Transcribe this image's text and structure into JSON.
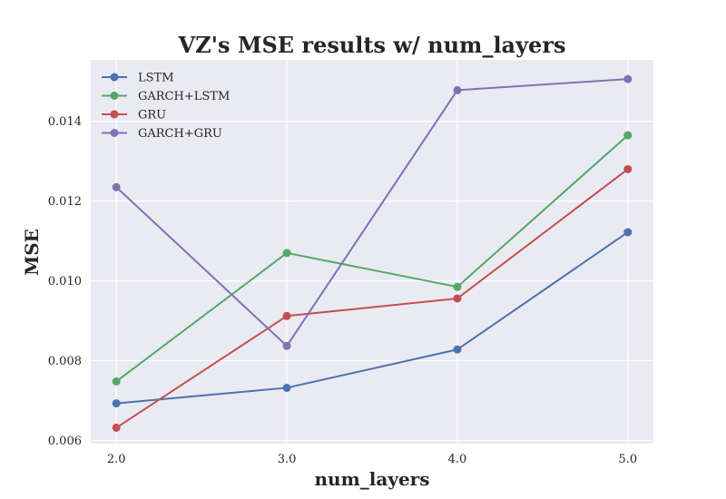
{
  "chart_data": {
    "type": "line",
    "title": "VZ's MSE results w/ num_layers",
    "xlabel": "num_layers",
    "ylabel": "MSE",
    "x": [
      2.0,
      3.0,
      4.0,
      5.0
    ],
    "x_tick_labels": [
      "2.0",
      "3.0",
      "4.0",
      "5.0"
    ],
    "xlim": [
      1.85,
      5.15
    ],
    "ylim": [
      0.00592,
      0.01554
    ],
    "y_ticks": [
      0.006,
      0.008,
      0.01,
      0.012,
      0.014
    ],
    "y_tick_labels": [
      "0.006",
      "0.008",
      "0.010",
      "0.012",
      "0.014"
    ],
    "grid": true,
    "legend_position": "upper-left",
    "background_color": "#EAEAF2",
    "series": [
      {
        "name": "LSTM",
        "color": "#4C72B0",
        "values": [
          0.00693,
          0.00732,
          0.00828,
          0.01122
        ]
      },
      {
        "name": "GARCH+LSTM",
        "color": "#55A868",
        "values": [
          0.00748,
          0.0107,
          0.00985,
          0.01365
        ]
      },
      {
        "name": "GRU",
        "color": "#C44E52",
        "values": [
          0.00632,
          0.00912,
          0.00956,
          0.0128
        ]
      },
      {
        "name": "GARCH+GRU",
        "color": "#8172B2",
        "values": [
          0.01235,
          0.00837,
          0.01478,
          0.01506
        ]
      }
    ]
  }
}
